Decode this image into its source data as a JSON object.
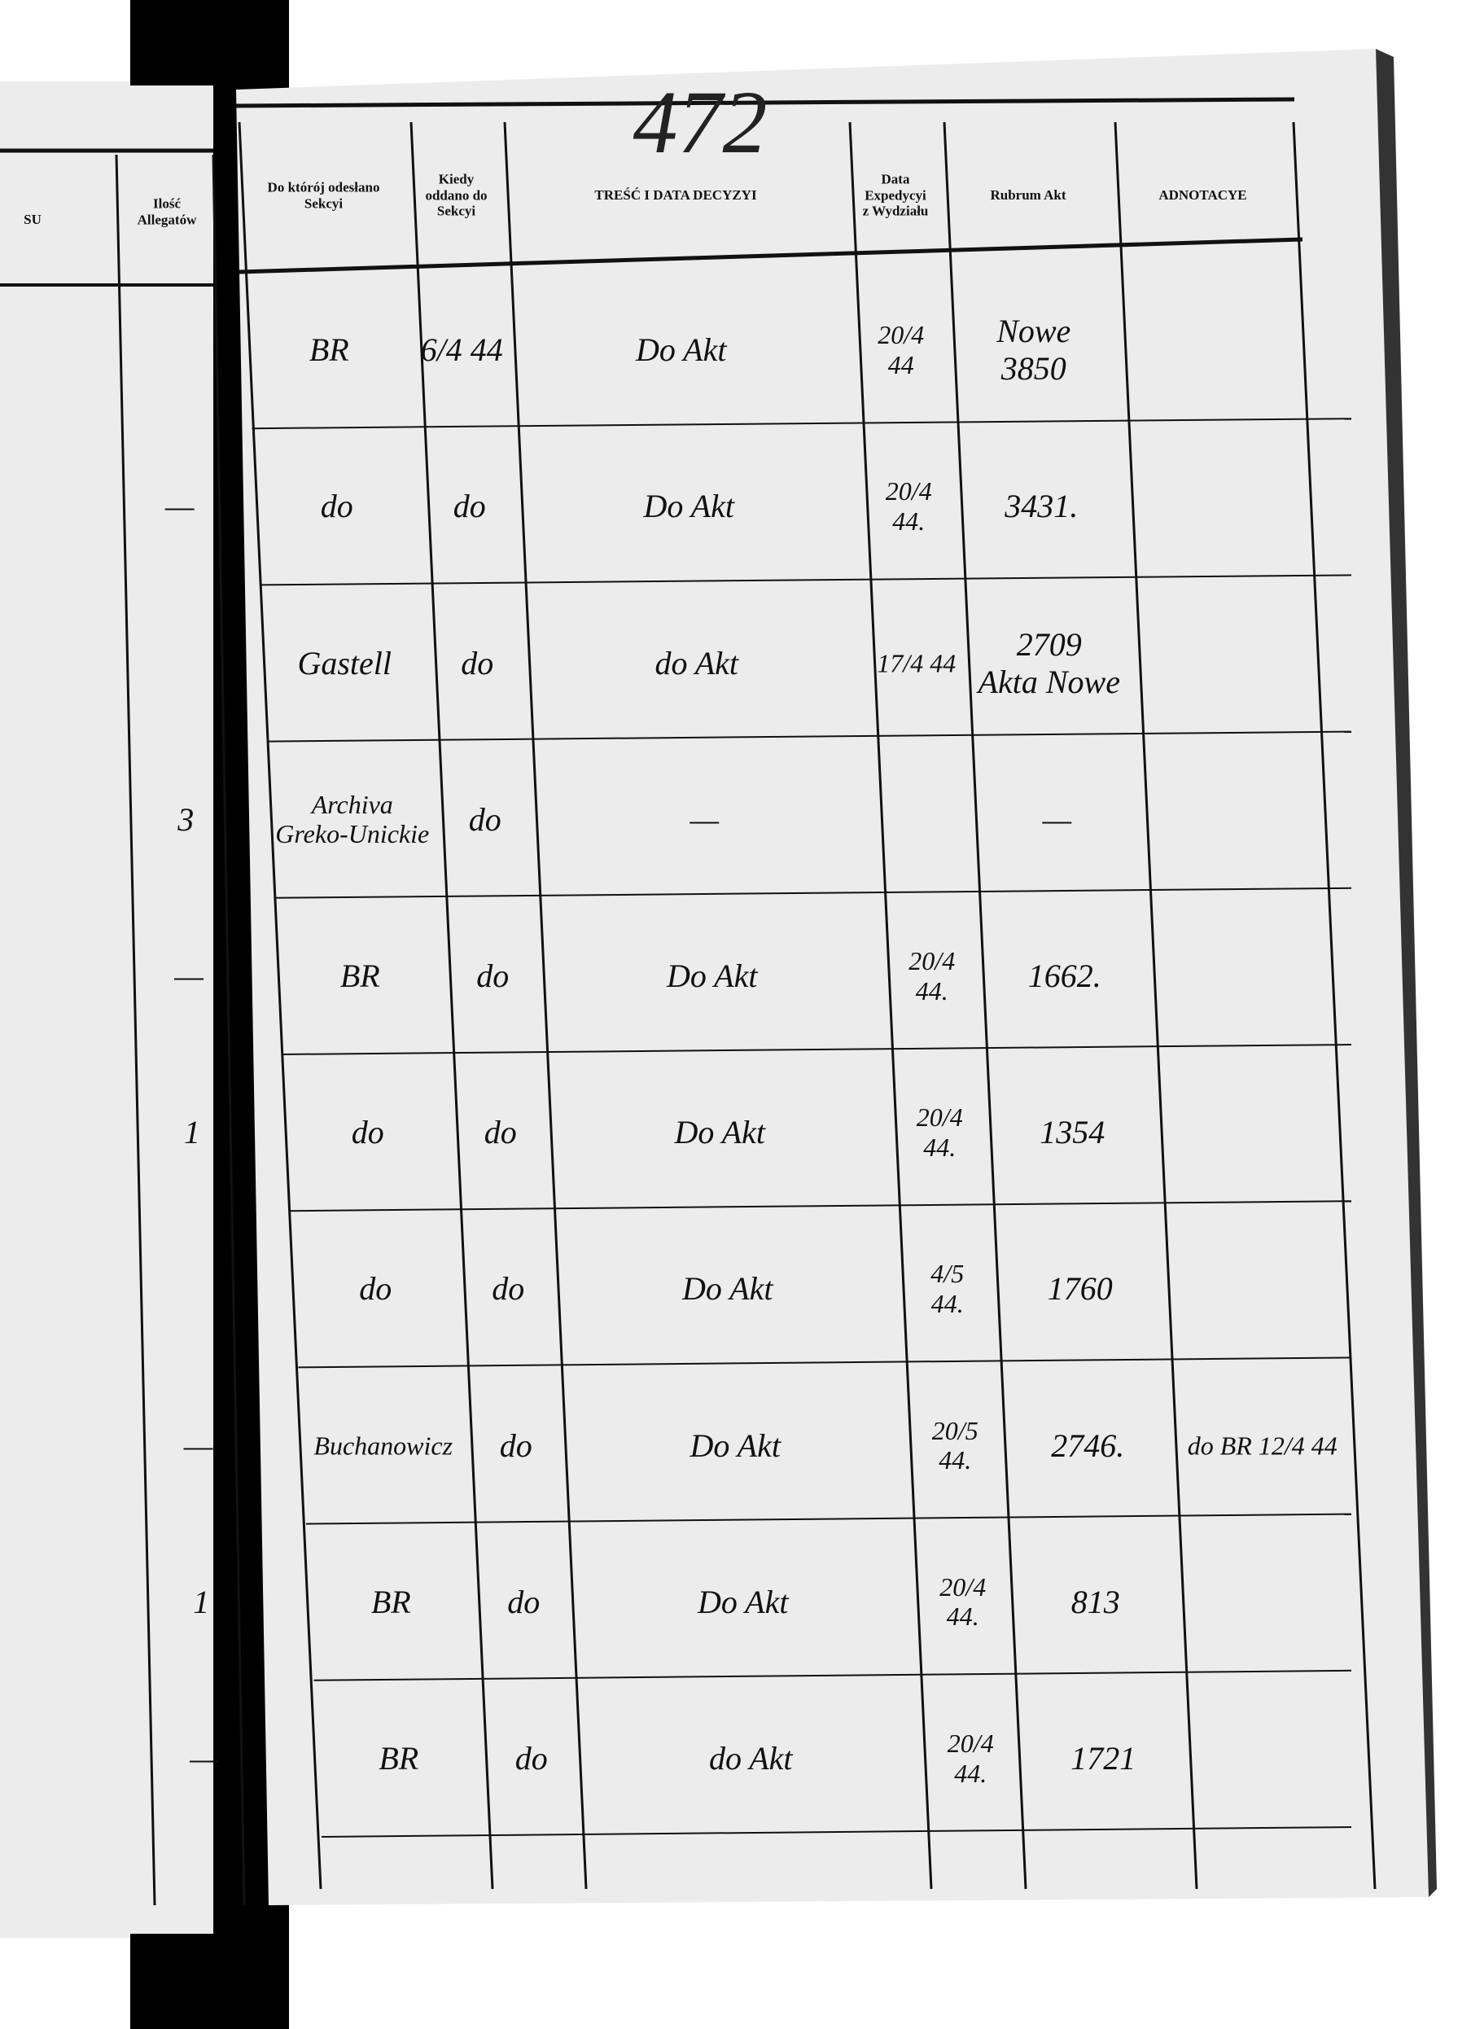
{
  "page_number": "472",
  "left_page": {
    "headers": [
      "SU",
      "Ilość\nAllegatów"
    ],
    "allegaty": [
      "—",
      "3",
      "—",
      "1",
      "—",
      "1",
      "—"
    ]
  },
  "right_page": {
    "headers": [
      "Do którój odesłano\nSekcyi",
      "Kiedy\noddano do\nSekcyi",
      "TREŚĆ I DATA DECYZYI",
      "Data\nExpedycyi\nz Wydziału",
      "Rubrum Akt",
      "ADNOTACYE"
    ],
    "rows": [
      {
        "sekcja": "BR",
        "kiedy": "6/4 44",
        "tresc": "Do Akt",
        "data": "20/4\n44",
        "rubrum": "Nowe\n3850"
      },
      {
        "sekcja": "do",
        "kiedy": "do",
        "tresc": "Do Akt",
        "data": "20/4\n44.",
        "rubrum": "3431."
      },
      {
        "sekcja": "Gastell",
        "kiedy": "do",
        "tresc": "do Akt",
        "data": "17/4 44",
        "rubrum": "2709\nAkta Nowe"
      },
      {
        "sekcja": "Archiva\nGreko-Unickie",
        "kiedy": "do",
        "tresc": "—",
        "rubrum": "—"
      },
      {
        "sekcja": "BR",
        "kiedy": "do",
        "tresc": "Do Akt",
        "data": "20/4\n44.",
        "rubrum": "1662."
      },
      {
        "sekcja": "do",
        "kiedy": "do",
        "tresc": "Do Akt",
        "data": "20/4\n44.",
        "rubrum": "1354"
      },
      {
        "sekcja": "do",
        "kiedy": "do",
        "tresc": "Do Akt",
        "data": "4/5\n44.",
        "rubrum": "1760"
      },
      {
        "sekcja": "Buchanowicz",
        "kiedy": "do",
        "tresc": "Do Akt",
        "data": "20/5\n44.",
        "rubrum": "2746.",
        "adnotacye": "do BR 12/4 44"
      },
      {
        "sekcja": "BR",
        "kiedy": "do",
        "tresc": "Do Akt",
        "data": "20/4\n44.",
        "rubrum": "813"
      },
      {
        "sekcja": "BR",
        "kiedy": "do",
        "tresc": "do Akt",
        "data": "20/4\n44.",
        "rubrum": "1721"
      }
    ]
  }
}
